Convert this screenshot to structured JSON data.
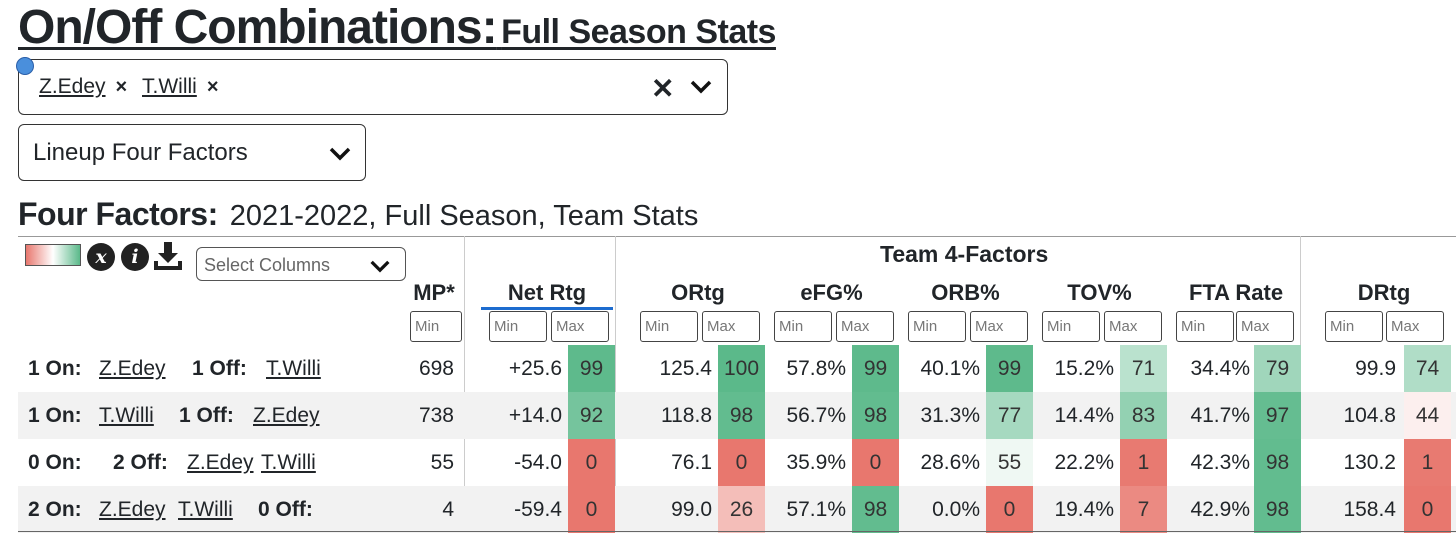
{
  "header": {
    "title_main": "On/Off Combinations:",
    "title_sub": "Full Season Stats"
  },
  "player_select": {
    "chips": [
      {
        "name": "Z.Edey"
      },
      {
        "name": "T.Willi"
      }
    ]
  },
  "view_select": {
    "value": "Lineup Four Factors"
  },
  "four_factors": {
    "heading": "Four Factors:",
    "context": "2021-2022, Full Season, Team Stats"
  },
  "toolbar": {
    "columns_placeholder": "Select Columns",
    "icons": [
      "gradient-legend",
      "close-icon",
      "info-icon",
      "download-icon",
      "chevron-down-icon"
    ]
  },
  "table": {
    "group_header": "Team 4-Factors",
    "columns": {
      "mp": "MP*",
      "net": "Net Rtg",
      "ortg": "ORtg",
      "efg": "eFG%",
      "orb": "ORB%",
      "tov": "TOV%",
      "fta": "FTA Rate",
      "drtg": "DRtg"
    },
    "filter": {
      "min": "Min",
      "max": "Max"
    },
    "rows": [
      {
        "lead1": "1 On:",
        "p1": "Z.Edey",
        "p2": "",
        "lead2": "1 Off:",
        "p3": "T.Willi",
        "p4": "",
        "mp": "698",
        "net": "+25.6",
        "net_p": "99",
        "ortg": "125.4",
        "ortg_p": "100",
        "efg": "57.8%",
        "efg_p": "99",
        "orb": "40.1%",
        "orb_p": "99",
        "tov": "15.2%",
        "tov_p": "71",
        "fta": "34.4%",
        "fta_p": "79",
        "drtg": "99.9",
        "drtg_p": "74"
      },
      {
        "lead1": "1 On:",
        "p1": "T.Willi",
        "p2": "",
        "lead2": "1 Off:",
        "p3": "Z.Edey",
        "p4": "",
        "mp": "738",
        "net": "+14.0",
        "net_p": "92",
        "ortg": "118.8",
        "ortg_p": "98",
        "efg": "56.7%",
        "efg_p": "98",
        "orb": "31.3%",
        "orb_p": "77",
        "tov": "14.4%",
        "tov_p": "83",
        "fta": "41.7%",
        "fta_p": "97",
        "drtg": "104.8",
        "drtg_p": "44"
      },
      {
        "lead1": "0 On:",
        "p1": "",
        "p2": "",
        "lead2": "2 Off:",
        "p3": "Z.Edey",
        "p4": "T.Willi",
        "mp": "55",
        "net": "-54.0",
        "net_p": "0",
        "ortg": "76.1",
        "ortg_p": "0",
        "efg": "35.9%",
        "efg_p": "0",
        "orb": "28.6%",
        "orb_p": "55",
        "tov": "22.2%",
        "tov_p": "1",
        "fta": "42.3%",
        "fta_p": "98",
        "drtg": "130.2",
        "drtg_p": "1"
      },
      {
        "lead1": "2 On:",
        "p1": "Z.Edey",
        "p2": "T.Willi",
        "lead2": "0 Off:",
        "p3": "",
        "p4": "",
        "mp": "4",
        "net": "-59.4",
        "net_p": "0",
        "ortg": "99.0",
        "ortg_p": "26",
        "efg": "57.1%",
        "efg_p": "98",
        "orb": "0.0%",
        "orb_p": "0",
        "tov": "19.4%",
        "tov_p": "7",
        "fta": "42.9%",
        "fta_p": "98",
        "drtg": "158.4",
        "drtg_p": "0"
      }
    ]
  },
  "colors": {
    "good": "#5bb98a",
    "neutral": "#ffffff",
    "bad": "#e8776e",
    "accent": "#1d6ccf"
  }
}
